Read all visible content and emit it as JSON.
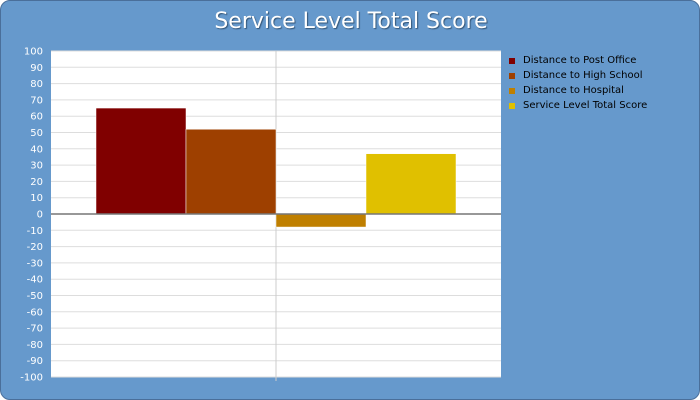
{
  "chart_data": {
    "type": "bar",
    "title": "Service Level Total Score",
    "xlabel": "",
    "ylabel": "",
    "ylim": [
      -100,
      100
    ],
    "ytick_step": 10,
    "grid": true,
    "legend_position": "right",
    "series": [
      {
        "name": "Distance to Post Office",
        "value": 65,
        "color": "#800000"
      },
      {
        "name": "Distance to High School",
        "value": 52,
        "color": "#9e4000"
      },
      {
        "name": "Distance to Hospital",
        "value": -8,
        "color": "#bf7f00"
      },
      {
        "name": "Service Level Total Score",
        "value": 37,
        "color": "#e0c000"
      }
    ]
  }
}
